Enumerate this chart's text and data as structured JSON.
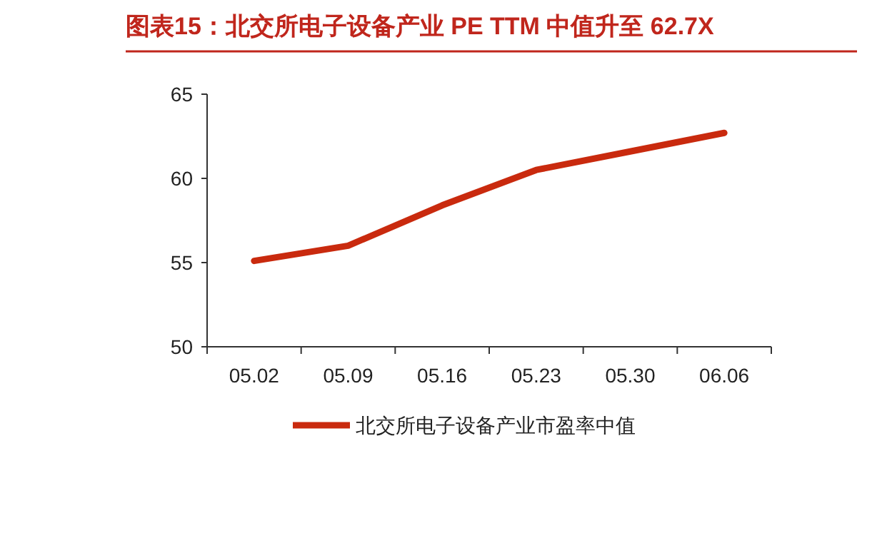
{
  "chart_data": {
    "type": "line",
    "title": "图表15：北交所电子设备产业 PE TTM 中值升至 62.7X",
    "categories": [
      "05.02",
      "05.09",
      "05.16",
      "05.23",
      "05.30",
      "06.06"
    ],
    "series": [
      {
        "name": "北交所电子设备产业市盈率中值",
        "color": "#c92a0e",
        "values": [
          55.1,
          56.0,
          58.4,
          60.5,
          61.6,
          62.7
        ]
      }
    ],
    "ylim": [
      50,
      65
    ],
    "yticks": [
      50,
      55,
      60,
      65
    ],
    "grid": false,
    "legend": "bottom",
    "marker": "none",
    "line_style": "solid"
  }
}
